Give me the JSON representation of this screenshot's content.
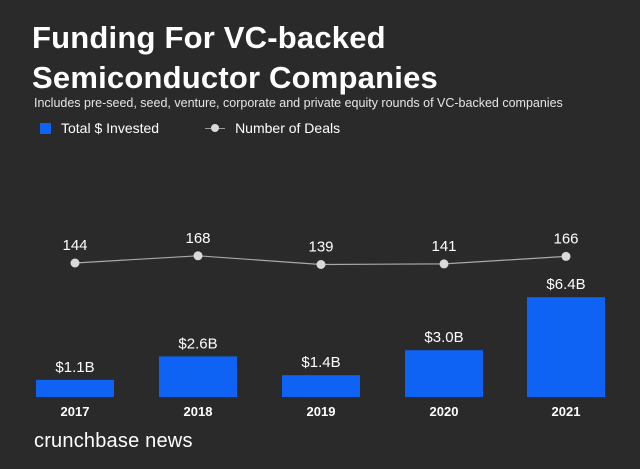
{
  "header": {
    "title": "Funding For VC-backed Semiconductor Companies",
    "subtitle": "Includes pre-seed, seed, venture, corporate and private equity rounds of VC-backed companies"
  },
  "legend": {
    "invested_label": "Total $ Invested",
    "deals_label": "Number of Deals"
  },
  "chart_data": {
    "type": "bar",
    "title": "Funding For VC-backed Semiconductor Companies",
    "subtitle": "Includes pre-seed, seed, venture, corporate and private equity rounds of VC-backed companies",
    "categories": [
      "2017",
      "2018",
      "2019",
      "2020",
      "2021"
    ],
    "series": [
      {
        "name": "Total $ Invested",
        "type": "bar",
        "values": [
          1.1,
          2.6,
          1.4,
          3.0,
          6.4
        ],
        "labels": [
          "$1.1B",
          "$2.6B",
          "$1.4B",
          "$3.0B",
          "$6.4B"
        ],
        "color": "#0e63f4"
      },
      {
        "name": "Number of Deals",
        "type": "line",
        "values": [
          144,
          168,
          139,
          141,
          166
        ],
        "labels": [
          "144",
          "168",
          "139",
          "141",
          "166"
        ],
        "color": "#d9d9d9"
      }
    ],
    "legend_position": "top-left",
    "grid": false
  },
  "footer": {
    "brand": "crunchbase news"
  }
}
